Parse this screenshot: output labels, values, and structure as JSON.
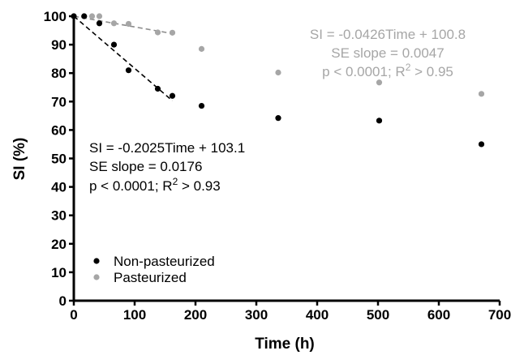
{
  "chart_data": {
    "type": "scatter",
    "xlabel": "Time (h)",
    "ylabel": "SI (%)",
    "xlim": [
      0,
      700
    ],
    "ylim": [
      0,
      100
    ],
    "x_ticks": [
      0,
      100,
      200,
      300,
      400,
      500,
      600,
      700
    ],
    "y_ticks": [
      0,
      10,
      20,
      30,
      40,
      50,
      60,
      70,
      80,
      90,
      100
    ],
    "grid": false,
    "legend_position": "bottom-left",
    "series": [
      {
        "name": "Non-pasteurized",
        "color": "#000000",
        "points": [
          {
            "x": 0,
            "y": 100
          },
          {
            "x": 17,
            "y": 100
          },
          {
            "x": 42,
            "y": 97.5
          },
          {
            "x": 66,
            "y": 90
          },
          {
            "x": 90,
            "y": 81
          },
          {
            "x": 138,
            "y": 74.5
          },
          {
            "x": 162,
            "y": 72
          },
          {
            "x": 210,
            "y": 68.5
          },
          {
            "x": 336,
            "y": 64.2
          },
          {
            "x": 502,
            "y": 63.3
          },
          {
            "x": 670,
            "y": 55
          }
        ],
        "fit": {
          "slope": -0.2025,
          "intercept": 103.1,
          "x_range": [
            0,
            162
          ]
        }
      },
      {
        "name": "Pasteurized",
        "color": "#a6a6a6",
        "points": [
          {
            "x": 0,
            "y": 100
          },
          {
            "x": 17,
            "y": 100
          },
          {
            "x": 30,
            "y": 100
          },
          {
            "x": 42,
            "y": 100
          },
          {
            "x": 66,
            "y": 97.5
          },
          {
            "x": 90,
            "y": 97.3
          },
          {
            "x": 138,
            "y": 94.3
          },
          {
            "x": 162,
            "y": 94.2
          },
          {
            "x": 210,
            "y": 88.5
          },
          {
            "x": 336,
            "y": 80.2
          },
          {
            "x": 502,
            "y": 76.7
          },
          {
            "x": 670,
            "y": 72.7
          }
        ],
        "fit": {
          "slope": -0.0426,
          "intercept": 100.8,
          "x_range": [
            0,
            162
          ]
        }
      }
    ],
    "annotations": [
      {
        "id": "pasteurized-eq",
        "color": "#a6a6a6",
        "align": "center",
        "lines": [
          "SI = -0.0426Time + 100.8",
          "SE slope = 0.0047"
        ],
        "stats_pre": "p < 0.0001; R",
        "stats_sup": "2",
        "stats_post": " > 0.95"
      },
      {
        "id": "nonpasteurized-eq",
        "color": "#000000",
        "align": "left",
        "lines": [
          "SI = -0.2025Time + 103.1",
          "SE slope = 0.0176"
        ],
        "stats_pre": "p < 0.0001; R",
        "stats_sup": "2",
        "stats_post": " > 0.93"
      }
    ]
  }
}
